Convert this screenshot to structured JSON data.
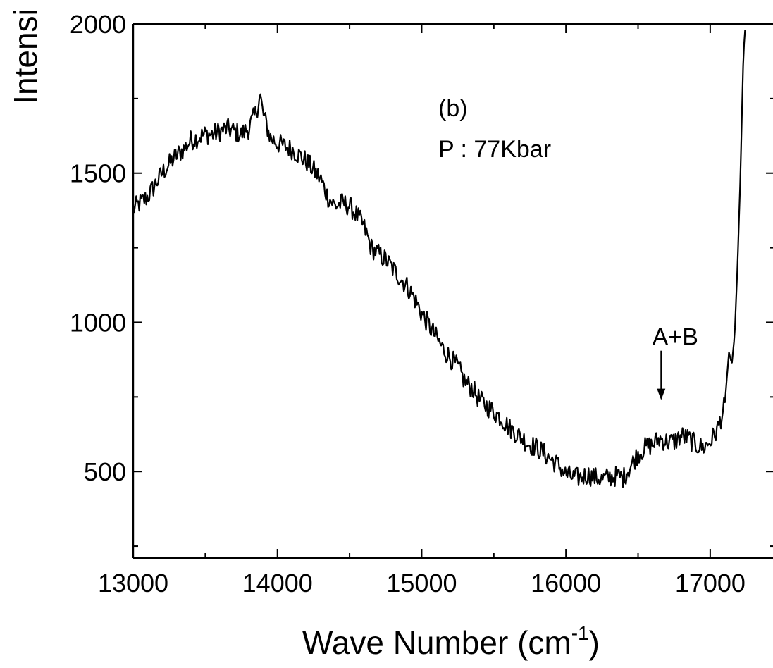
{
  "chart_data": {
    "type": "line",
    "title": "",
    "xlabel": "Wave Number (cm",
    "xlabel_sup": "-1",
    "xlabel_close": ")",
    "ylabel": "Intensi",
    "xlim": [
      13000,
      17450
    ],
    "ylim": [
      210,
      2000
    ],
    "xticks": [
      13000,
      14000,
      15000,
      16000,
      17000
    ],
    "xtick_labels": [
      "13000",
      "14000",
      "15000",
      "16000",
      "17000"
    ],
    "yticks": [
      500,
      1000,
      1500,
      2000
    ],
    "ytick_labels": [
      "500",
      "1000",
      "1500",
      "2000"
    ],
    "panel_label": "(b)",
    "pressure_label": "P : 77Kbar",
    "arrow_annotation": {
      "text": "A+B",
      "x": 16660,
      "y_tail": 905,
      "y_head": 740
    },
    "grid": false,
    "series": [
      {
        "x": [
          13000,
          13050,
          13100,
          13150,
          13200,
          13250,
          13300,
          13350,
          13400,
          13450,
          13500,
          13550,
          13600,
          13650,
          13700,
          13750,
          13800,
          13850,
          13880,
          13900,
          13950,
          14000,
          14050,
          14100,
          14150,
          14200,
          14250,
          14300,
          14350,
          14400,
          14450,
          14500,
          14550,
          14600,
          14650,
          14700,
          14750,
          14800,
          14850,
          14900,
          14950,
          15000,
          15050,
          15100,
          15150,
          15200,
          15250,
          15300,
          15350,
          15400,
          15450,
          15500,
          15550,
          15600,
          15650,
          15700,
          15750,
          15800,
          15850,
          15900,
          15950,
          16000,
          16050,
          16100,
          16150,
          16200,
          16250,
          16300,
          16350,
          16400,
          16450,
          16500,
          16550,
          16600,
          16650,
          16700,
          16750,
          16800,
          16850,
          16900,
          16950,
          17000,
          17050,
          17100,
          17130,
          17150,
          17170,
          17190,
          17210,
          17230,
          17245
        ],
        "y": [
          1380,
          1400,
          1420,
          1460,
          1500,
          1530,
          1560,
          1580,
          1610,
          1620,
          1630,
          1630,
          1640,
          1650,
          1640,
          1630,
          1650,
          1700,
          1760,
          1700,
          1620,
          1600,
          1590,
          1580,
          1560,
          1540,
          1510,
          1480,
          1420,
          1390,
          1400,
          1390,
          1360,
          1320,
          1250,
          1230,
          1210,
          1180,
          1150,
          1120,
          1080,
          1030,
          990,
          950,
          910,
          880,
          850,
          800,
          780,
          740,
          720,
          700,
          680,
          650,
          630,
          610,
          590,
          580,
          560,
          540,
          520,
          490,
          480,
          480,
          490,
          480,
          475,
          480,
          485,
          480,
          520,
          560,
          580,
          590,
          610,
          600,
          600,
          620,
          610,
          590,
          580,
          600,
          640,
          720,
          900,
          860,
          960,
          1200,
          1500,
          1900,
          2000
        ]
      }
    ]
  }
}
